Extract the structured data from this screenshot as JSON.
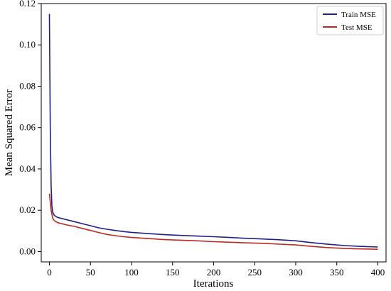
{
  "chart_data": {
    "type": "line",
    "title": "",
    "xlabel": "Iterations",
    "ylabel": "Mean Squared Error",
    "xlim": [
      -10,
      410
    ],
    "ylim": [
      -0.005,
      0.12
    ],
    "xticks": [
      0,
      50,
      100,
      150,
      200,
      250,
      300,
      350,
      400
    ],
    "xtick_labels": [
      "0",
      "50",
      "100",
      "150",
      "200",
      "250",
      "300",
      "350",
      "400"
    ],
    "yticks": [
      0.0,
      0.02,
      0.04,
      0.06,
      0.08,
      0.1,
      0.12
    ],
    "ytick_labels": [
      "0.00",
      "0.02",
      "0.04",
      "0.06",
      "0.08",
      "0.10",
      "0.12"
    ],
    "grid": false,
    "legend_position": "top-right",
    "series": [
      {
        "name": "Train MSE",
        "color": "#1f1f8a",
        "x": [
          0,
          1,
          2,
          3,
          4,
          6,
          10,
          20,
          30,
          40,
          50,
          60,
          70,
          80,
          90,
          100,
          120,
          140,
          160,
          180,
          200,
          220,
          240,
          260,
          280,
          300,
          320,
          340,
          360,
          380,
          400
        ],
        "y": [
          0.115,
          0.06,
          0.032,
          0.022,
          0.019,
          0.0175,
          0.0165,
          0.0155,
          0.0145,
          0.0135,
          0.0125,
          0.0115,
          0.0108,
          0.0102,
          0.0097,
          0.0093,
          0.0087,
          0.0082,
          0.0078,
          0.0075,
          0.0072,
          0.0068,
          0.0064,
          0.0061,
          0.0057,
          0.0052,
          0.0043,
          0.0035,
          0.0029,
          0.0025,
          0.0022
        ]
      },
      {
        "name": "Test MSE",
        "color": "#c0281e",
        "x": [
          0,
          1,
          2,
          3,
          4,
          6,
          10,
          20,
          30,
          40,
          50,
          60,
          70,
          80,
          90,
          100,
          120,
          140,
          160,
          180,
          200,
          220,
          240,
          260,
          280,
          300,
          320,
          340,
          360,
          380,
          400
        ],
        "y": [
          0.028,
          0.024,
          0.02,
          0.018,
          0.016,
          0.015,
          0.014,
          0.013,
          0.0122,
          0.0112,
          0.0102,
          0.0092,
          0.0083,
          0.0077,
          0.0072,
          0.0068,
          0.0063,
          0.0058,
          0.0055,
          0.0052,
          0.0048,
          0.0045,
          0.0042,
          0.004,
          0.0036,
          0.0032,
          0.0025,
          0.0019,
          0.0015,
          0.0013,
          0.0011
        ]
      }
    ]
  }
}
